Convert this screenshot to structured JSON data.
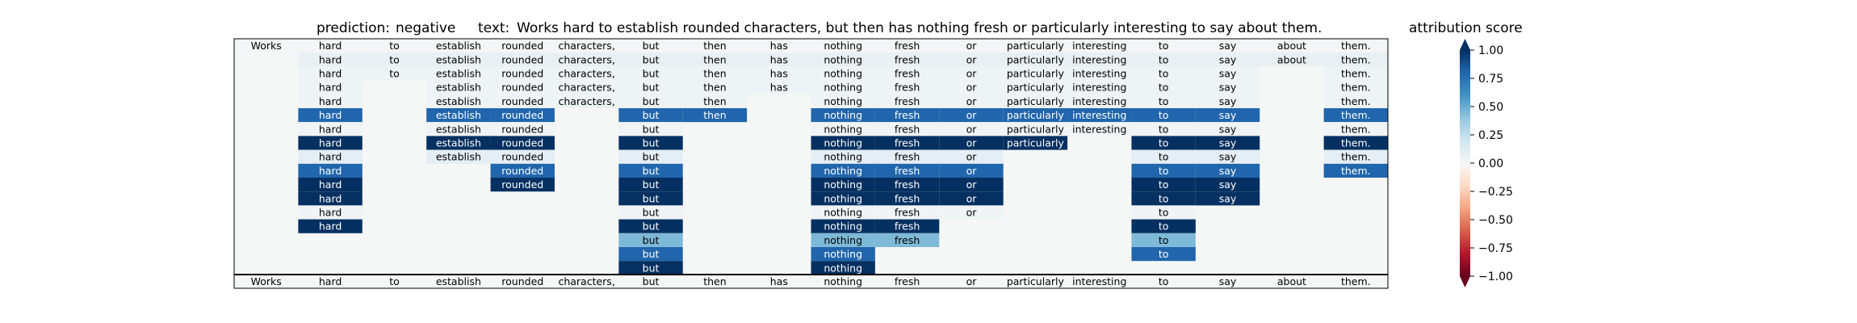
{
  "chart_data": {
    "type": "heatmap",
    "title": {
      "prediction_label": "prediction:",
      "prediction": "negative",
      "text_label": "text:",
      "text": "Works hard to establish rounded characters, but then has nothing fresh or particularly interesting to say about them."
    },
    "tokens": [
      "Works",
      "hard",
      "to",
      "establish",
      "rounded",
      "characters,",
      "but",
      "then",
      "has",
      "nothing",
      "fresh",
      "or",
      "particularly",
      "interesting",
      "to",
      "say",
      "about",
      "them."
    ],
    "rows": [
      [
        0.02,
        0.02,
        0.02,
        0.02,
        0.02,
        0.02,
        0.02,
        0.02,
        0.02,
        0.02,
        0.02,
        0.02,
        0.02,
        0.02,
        0.02,
        0.02,
        0.02,
        0.02
      ],
      [
        null,
        0.08,
        0.08,
        0.08,
        0.08,
        0.08,
        0.08,
        0.08,
        0.08,
        0.08,
        0.08,
        0.08,
        0.08,
        0.08,
        0.08,
        0.08,
        0.08,
        0.08
      ],
      [
        null,
        0.05,
        0.05,
        0.05,
        0.05,
        0.05,
        0.05,
        0.05,
        0.05,
        0.05,
        0.05,
        0.05,
        0.05,
        0.05,
        0.05,
        0.05,
        null,
        0.05
      ],
      [
        null,
        0.05,
        null,
        0.05,
        0.05,
        0.05,
        0.05,
        0.05,
        0.05,
        0.05,
        0.05,
        0.05,
        0.05,
        0.05,
        0.05,
        0.05,
        null,
        0.05
      ],
      [
        null,
        0.05,
        null,
        0.05,
        0.05,
        0.05,
        0.05,
        0.05,
        null,
        0.05,
        0.05,
        0.05,
        0.05,
        0.05,
        0.05,
        0.05,
        null,
        0.05
      ],
      [
        null,
        0.8,
        null,
        0.8,
        0.8,
        null,
        0.8,
        0.8,
        null,
        0.8,
        0.8,
        0.8,
        0.8,
        0.8,
        0.8,
        0.8,
        null,
        0.8
      ],
      [
        null,
        0.03,
        null,
        0.03,
        0.03,
        null,
        0.03,
        null,
        null,
        0.03,
        0.03,
        0.03,
        0.03,
        0.03,
        0.03,
        0.03,
        null,
        0.03
      ],
      [
        null,
        1.0,
        null,
        1.0,
        1.0,
        null,
        1.0,
        null,
        null,
        1.0,
        1.0,
        1.0,
        1.0,
        null,
        1.0,
        1.0,
        null,
        1.0
      ],
      [
        null,
        0.1,
        null,
        0.1,
        0.1,
        null,
        0.1,
        null,
        null,
        0.1,
        0.1,
        0.1,
        null,
        null,
        0.1,
        0.1,
        null,
        0.1
      ],
      [
        null,
        0.8,
        null,
        null,
        0.8,
        null,
        0.8,
        null,
        null,
        0.8,
        0.8,
        0.8,
        null,
        null,
        0.8,
        0.8,
        null,
        0.8
      ],
      [
        null,
        1.0,
        null,
        null,
        1.0,
        null,
        1.0,
        null,
        null,
        1.0,
        1.0,
        1.0,
        null,
        null,
        1.0,
        1.0,
        null,
        null
      ],
      [
        null,
        1.0,
        null,
        null,
        null,
        null,
        1.0,
        null,
        null,
        1.0,
        1.0,
        1.0,
        null,
        null,
        1.0,
        1.0,
        null,
        null
      ],
      [
        null,
        0.03,
        null,
        null,
        null,
        null,
        0.03,
        null,
        null,
        0.03,
        0.03,
        0.03,
        null,
        null,
        0.03,
        null,
        null,
        null
      ],
      [
        null,
        1.0,
        null,
        null,
        null,
        null,
        1.0,
        null,
        null,
        1.0,
        1.0,
        null,
        null,
        null,
        1.0,
        null,
        null,
        null
      ],
      [
        null,
        null,
        null,
        null,
        null,
        null,
        0.45,
        null,
        null,
        0.45,
        0.45,
        null,
        null,
        null,
        0.45,
        null,
        null,
        null
      ],
      [
        null,
        null,
        null,
        null,
        null,
        null,
        0.8,
        null,
        null,
        0.8,
        null,
        null,
        null,
        null,
        0.8,
        null,
        null,
        null
      ],
      [
        null,
        null,
        null,
        null,
        null,
        null,
        1.0,
        null,
        null,
        1.0,
        null,
        null,
        null,
        null,
        null,
        null,
        null,
        null
      ]
    ],
    "colorbar": {
      "label": "attribution score",
      "ticks": [
        "1.00",
        "0.75",
        "0.50",
        "0.25",
        "0.00",
        "−0.25",
        "−0.50",
        "−0.75",
        "−1.00"
      ],
      "tick_values": [
        1.0,
        0.75,
        0.5,
        0.25,
        0.0,
        -0.25,
        -0.5,
        -0.75,
        -1.0
      ],
      "range": [
        -1,
        1
      ],
      "colormap": "RdBu",
      "extend": "both"
    },
    "background_color": "#f5f7f7",
    "divider_color": "#000000"
  }
}
